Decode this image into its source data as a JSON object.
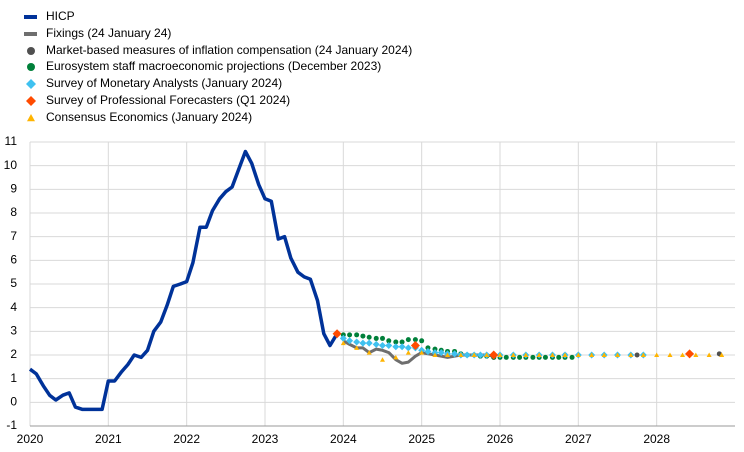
{
  "chart_data": {
    "type": "line",
    "xlim": [
      2020,
      2029
    ],
    "xticks": [
      2020,
      2021,
      2022,
      2023,
      2024,
      2025,
      2026,
      2027,
      2028
    ],
    "ylim": [
      -1,
      11
    ],
    "yticks": [
      -1,
      0,
      1,
      2,
      3,
      4,
      5,
      6,
      7,
      8,
      9,
      10,
      11
    ],
    "grid": true,
    "legend": "top-left",
    "series": [
      {
        "name": "HICP",
        "color": "#003299",
        "marker": "line",
        "x": [
          2020,
          2020.08,
          2020.17,
          2020.25,
          2020.33,
          2020.42,
          2020.5,
          2020.58,
          2020.67,
          2020.75,
          2020.83,
          2020.92,
          2021,
          2021.08,
          2021.17,
          2021.25,
          2021.33,
          2021.42,
          2021.5,
          2021.58,
          2021.67,
          2021.75,
          2021.83,
          2021.92,
          2022,
          2022.08,
          2022.17,
          2022.25,
          2022.33,
          2022.42,
          2022.5,
          2022.58,
          2022.67,
          2022.75,
          2022.83,
          2022.92,
          2023,
          2023.08,
          2023.17,
          2023.25,
          2023.33,
          2023.42,
          2023.5,
          2023.58,
          2023.67,
          2023.75,
          2023.83,
          2023.92
        ],
        "values": [
          1.4,
          1.2,
          0.7,
          0.3,
          0.1,
          0.3,
          0.4,
          -0.2,
          -0.3,
          -0.3,
          -0.3,
          -0.3,
          0.9,
          0.9,
          1.3,
          1.6,
          2.0,
          1.9,
          2.2,
          3.0,
          3.4,
          4.1,
          4.9,
          5.0,
          5.1,
          5.9,
          7.4,
          7.4,
          8.1,
          8.6,
          8.9,
          9.1,
          9.9,
          10.6,
          10.1,
          9.2,
          8.6,
          8.5,
          6.9,
          7.0,
          6.1,
          5.5,
          5.3,
          5.2,
          4.3,
          2.9,
          2.4,
          2.9
        ]
      },
      {
        "name": "Fixings (24 January 24)",
        "color": "#6e6e6e",
        "marker": "line",
        "x": [
          2024,
          2024.08,
          2024.17,
          2024.25,
          2024.33,
          2024.42,
          2024.5,
          2024.58,
          2024.67,
          2024.75,
          2024.83,
          2024.92,
          2025,
          2025.08,
          2025.17,
          2025.25,
          2025.33,
          2025.42,
          2025.5,
          2025.58,
          2025.67,
          2025.75,
          2025.83,
          2025.92
        ],
        "values": [
          2.6,
          2.45,
          2.3,
          2.3,
          2.1,
          2.25,
          2.2,
          2.1,
          1.8,
          1.65,
          1.7,
          1.95,
          2.1,
          2.05,
          2.0,
          1.95,
          1.9,
          1.95,
          2.0,
          2.0,
          2.0,
          2.0,
          2.0,
          1.95
        ]
      },
      {
        "name": "Market-based measures of inflation compensation (24 January 2024)",
        "color": "#505050",
        "marker": "circle",
        "x": [
          2025.92,
          2026.83,
          2027.75,
          2028.8
        ],
        "values": [
          1.9,
          2.0,
          2.0,
          2.05
        ]
      },
      {
        "name": "Eurosystem staff macroeconomic projections (December 2023)",
        "color": "#00803a",
        "marker": "circle",
        "x": [
          2024,
          2024.08,
          2024.17,
          2024.25,
          2024.33,
          2024.42,
          2024.5,
          2024.58,
          2024.67,
          2024.75,
          2024.83,
          2024.92,
          2025,
          2025.08,
          2025.17,
          2025.25,
          2025.33,
          2025.42,
          2025.5,
          2025.58,
          2025.67,
          2025.75,
          2025.83,
          2025.92,
          2026,
          2026.08,
          2026.17,
          2026.25,
          2026.33,
          2026.42,
          2026.5,
          2026.58,
          2026.67,
          2026.75,
          2026.83,
          2026.92
        ],
        "values": [
          2.85,
          2.85,
          2.85,
          2.8,
          2.75,
          2.7,
          2.7,
          2.6,
          2.55,
          2.55,
          2.65,
          2.65,
          2.6,
          2.3,
          2.25,
          2.2,
          2.15,
          2.15,
          2.05,
          2.0,
          2.0,
          1.95,
          1.95,
          1.9,
          1.9,
          1.9,
          1.9,
          1.9,
          1.9,
          1.9,
          1.9,
          1.9,
          1.9,
          1.9,
          1.9,
          1.9
        ]
      },
      {
        "name": "Survey of Monetary Analysts (January 2024)",
        "color": "#3fc1f0",
        "marker": "diamond",
        "x": [
          2024,
          2024.08,
          2024.17,
          2024.25,
          2024.33,
          2024.42,
          2024.5,
          2024.58,
          2024.67,
          2024.75,
          2024.83,
          2024.92,
          2025,
          2025.08,
          2025.17,
          2025.25,
          2025.33,
          2025.42,
          2025.5,
          2025.58,
          2025.67,
          2025.75,
          2025.83,
          2025.92,
          2026,
          2026.17,
          2026.33,
          2026.5,
          2026.67,
          2026.83,
          2027,
          2027.17,
          2027.33,
          2027.5,
          2027.67,
          2027.83
        ],
        "values": [
          2.7,
          2.6,
          2.55,
          2.5,
          2.5,
          2.45,
          2.4,
          2.4,
          2.35,
          2.35,
          2.3,
          2.3,
          2.2,
          2.15,
          2.1,
          2.1,
          2.05,
          2.05,
          2.0,
          2.0,
          2.0,
          2.0,
          2.0,
          2.0,
          2.0,
          2.0,
          2.0,
          2.0,
          2.0,
          2.0,
          2.0,
          2.0,
          2.0,
          2.0,
          2.0,
          2.0
        ]
      },
      {
        "name": "Survey of Professional Forecasters (Q1 2024)",
        "color": "#ff4b00",
        "marker": "diamond",
        "x": [
          2023.92,
          2024.92,
          2025.92,
          2028.42
        ],
        "values": [
          2.9,
          2.4,
          2.0,
          2.05
        ]
      },
      {
        "name": "Consensus Economics (January 2024)",
        "color": "#ffb400",
        "marker": "triangle",
        "x": [
          2024,
          2024.17,
          2024.33,
          2024.5,
          2024.67,
          2024.83,
          2025,
          2025.17,
          2025.33,
          2025.5,
          2025.67,
          2025.83,
          2026,
          2026.17,
          2026.33,
          2026.5,
          2026.67,
          2026.83,
          2027,
          2027.17,
          2027.33,
          2027.5,
          2027.67,
          2027.83,
          2028,
          2028.17,
          2028.33,
          2028.5,
          2028.67,
          2028.83
        ],
        "values": [
          2.5,
          2.3,
          2.1,
          1.8,
          1.9,
          2.1,
          2.1,
          2.0,
          2.0,
          2.0,
          2.0,
          2.0,
          2.0,
          2.0,
          2.0,
          2.0,
          2.0,
          2.0,
          2.0,
          2.0,
          2.0,
          2.0,
          2.0,
          2.0,
          2.0,
          2.0,
          2.0,
          2.0,
          2.0,
          2.0
        ]
      }
    ]
  }
}
